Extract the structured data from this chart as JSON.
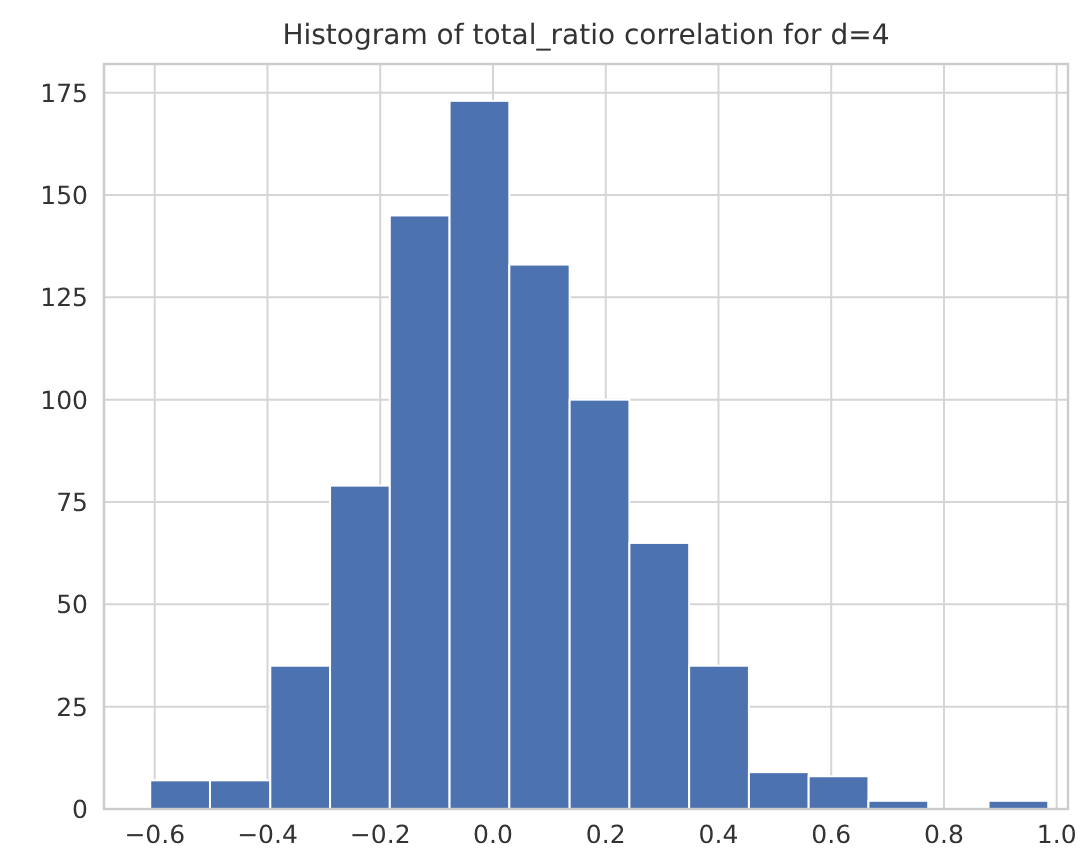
{
  "chart_data": {
    "type": "histogram",
    "title": "Histogram of total_ratio correlation for d=4",
    "bins": [
      -0.608,
      -0.502,
      -0.395,
      -0.289,
      -0.183,
      -0.077,
      0.029,
      0.136,
      0.242,
      0.348,
      0.454,
      0.56,
      0.666,
      0.772,
      0.879,
      0.985
    ],
    "values": [
      7,
      7,
      35,
      79,
      145,
      173,
      133,
      100,
      65,
      35,
      9,
      8,
      2,
      0,
      2
    ],
    "color": "#4c72b0",
    "xlim": [
      -0.69,
      1.02
    ],
    "xticks": [
      {
        "value": -0.6,
        "label": "−0.6"
      },
      {
        "value": -0.4,
        "label": "−0.4"
      },
      {
        "value": -0.2,
        "label": "−0.2"
      },
      {
        "value": 0,
        "label": "0.0"
      },
      {
        "value": 0.2,
        "label": "0.2"
      },
      {
        "value": 0.4,
        "label": "0.4"
      },
      {
        "value": 0.6,
        "label": "0.6"
      },
      {
        "value": 0.8,
        "label": "0.8"
      },
      {
        "value": 1,
        "label": "1.0"
      }
    ],
    "ylim": [
      0,
      182
    ],
    "yticks": [
      0,
      25,
      50,
      75,
      100,
      125,
      150,
      175
    ],
    "grid": true
  }
}
